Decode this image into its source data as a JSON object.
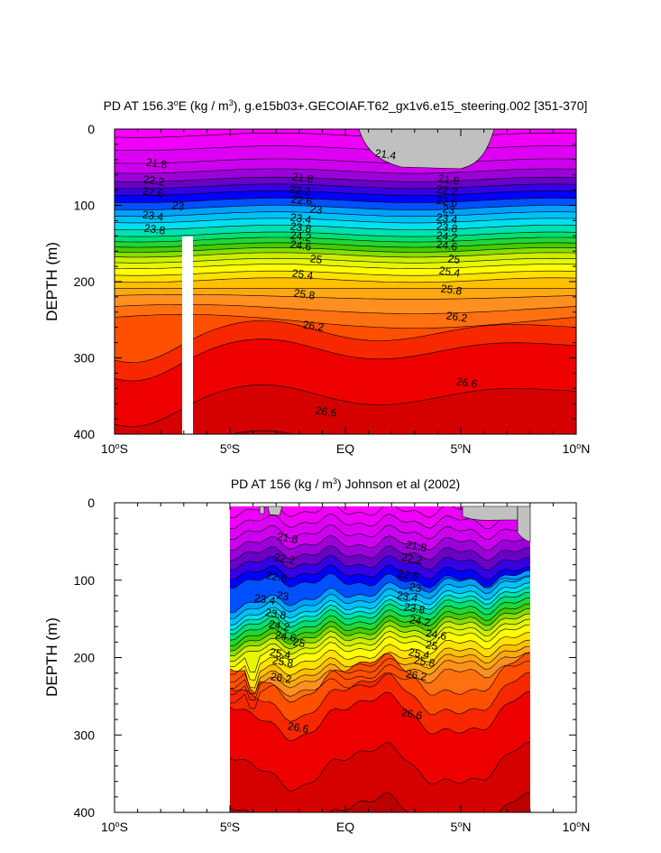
{
  "chart_data": [
    {
      "type": "contour",
      "title": {
        "prefix": "PD AT 156.3",
        "deg": "o",
        "mid": "E (kg / m",
        "sup": "3",
        "suffix": "), g.e15b03+.GECOIAF.T62_gx1v6.e15_steering.002 [351-370]"
      },
      "ylabel": "DEPTH (m)",
      "ylim": [
        0,
        400
      ],
      "yticks": [
        "0",
        "100",
        "200",
        "300",
        "400"
      ],
      "xlim": [
        -10,
        10
      ],
      "xticks": [
        {
          "v": -10,
          "label": "10",
          "hem": "S"
        },
        {
          "v": -5,
          "label": "5",
          "hem": "S"
        },
        {
          "v": 0,
          "label": "EQ",
          "hem": ""
        },
        {
          "v": 5,
          "label": "5",
          "hem": "N"
        },
        {
          "v": 10,
          "label": "10",
          "hem": "N"
        }
      ],
      "data_range_x": [
        -10,
        10
      ],
      "contour_interval": 0.2,
      "levels_range": [
        21.4,
        27.0
      ],
      "missing_region": "gray areas above 21.4 near surface; white gap near 3.3S",
      "contour_labels": [
        "21.8",
        "22.2",
        "22.6",
        "23",
        "23.4",
        "23.8",
        "24.2",
        "24.6",
        "25",
        "25.4",
        "25.8",
        "26.2",
        "26.6",
        "21.4"
      ]
    },
    {
      "type": "contour",
      "title": {
        "prefix": "PD AT 156 (kg / m",
        "sup": "3",
        "suffix": ") Johnson et al (2002)"
      },
      "ylabel": "DEPTH (m)",
      "ylim": [
        0,
        400
      ],
      "yticks": [
        "0",
        "100",
        "200",
        "300",
        "400"
      ],
      "xlim": [
        -10,
        10
      ],
      "xticks": [
        {
          "v": -10,
          "label": "10",
          "hem": "S"
        },
        {
          "v": -5,
          "label": "5",
          "hem": "S"
        },
        {
          "v": 0,
          "label": "EQ",
          "hem": ""
        },
        {
          "v": 5,
          "label": "5",
          "hem": "N"
        },
        {
          "v": 10,
          "label": "10",
          "hem": "N"
        }
      ],
      "data_range_x": [
        -5,
        8
      ],
      "contour_interval": 0.2,
      "levels_range": [
        21.4,
        27.0
      ],
      "contour_labels": [
        "21.8",
        "22.2",
        "22.6",
        "23",
        "23.4",
        "23.8",
        "24.2",
        "24.6",
        "25",
        "25.4",
        "25.8",
        "26.2",
        "26.6"
      ]
    }
  ]
}
